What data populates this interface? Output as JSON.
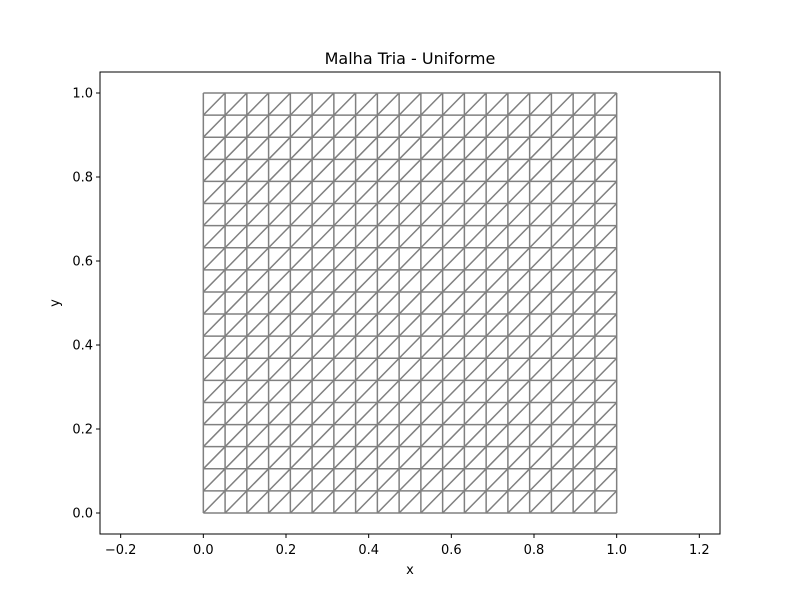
{
  "chart_data": {
    "type": "mesh",
    "title": "Malha Tria - Uniforme",
    "xlabel": "x",
    "ylabel": "y",
    "xlim": [
      -0.25,
      1.25
    ],
    "ylim": [
      -0.05,
      1.05
    ],
    "x_ticks": [
      -0.2,
      0.0,
      0.2,
      0.4,
      0.6,
      0.8,
      1.0,
      1.2
    ],
    "x_tick_labels": [
      "−0.2",
      "0.0",
      "0.2",
      "0.4",
      "0.6",
      "0.8",
      "1.0",
      "1.2"
    ],
    "y_ticks": [
      0.0,
      0.2,
      0.4,
      0.6,
      0.8,
      1.0
    ],
    "y_tick_labels": [
      "0.0",
      "0.2",
      "0.4",
      "0.6",
      "0.8",
      "1.0"
    ],
    "mesh": {
      "x_range": [
        0,
        1
      ],
      "y_range": [
        0,
        1
      ],
      "divisions_x": 19,
      "divisions_y": 19,
      "element": "triangle",
      "diagonal": "bottom-left to top-right",
      "edge_color": "#808080"
    },
    "grid": false,
    "legend": "none"
  }
}
